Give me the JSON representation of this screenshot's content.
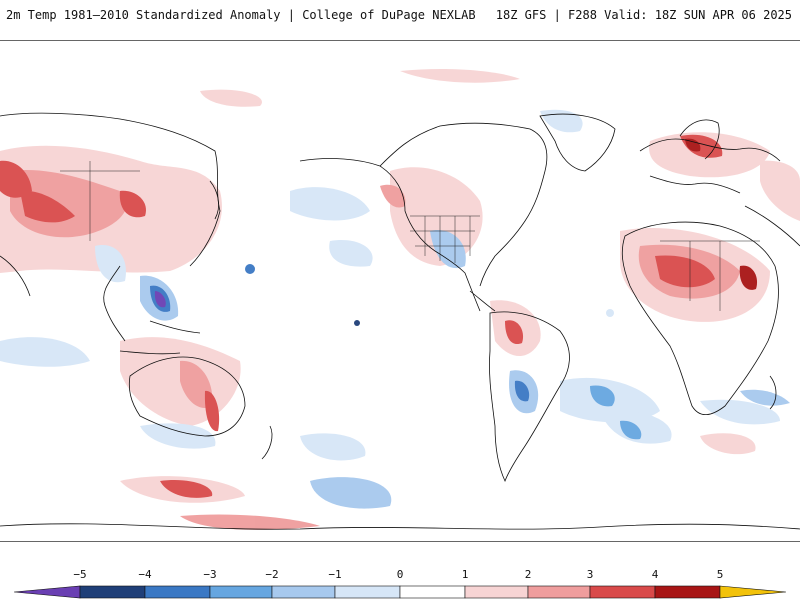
{
  "header": {
    "title": "2m Temp 1981–2010 Standardized Anomaly | College of DuPage NEXLAB",
    "valid": "18Z GFS | F288 Valid: 18Z SUN APR 06 2025"
  },
  "colorbar": {
    "ticks": [
      "−5",
      "−4",
      "−3",
      "−2",
      "−1",
      "0",
      "1",
      "2",
      "3",
      "4",
      "5"
    ],
    "colors": {
      "min_arrow": "#6a3fb3",
      "neg5": "#1f3f78",
      "neg4": "#3a78c4",
      "neg3": "#66a6e0",
      "neg2": "#a7c9ee",
      "neg1": "#d6e6f7",
      "zero_low": "#ffffff",
      "zero_high": "#ffffff",
      "pos1": "#f7d4d4",
      "pos2": "#ef9d9d",
      "pos3": "#d94a4a",
      "pos4": "#a81515",
      "pos5": "#6e0000",
      "max_arrow": "#f2c20a"
    }
  },
  "map": {
    "projection": "cylindrical, Pacific-centered",
    "coast_color": "#111111",
    "ocean_color": "#ffffff"
  }
}
